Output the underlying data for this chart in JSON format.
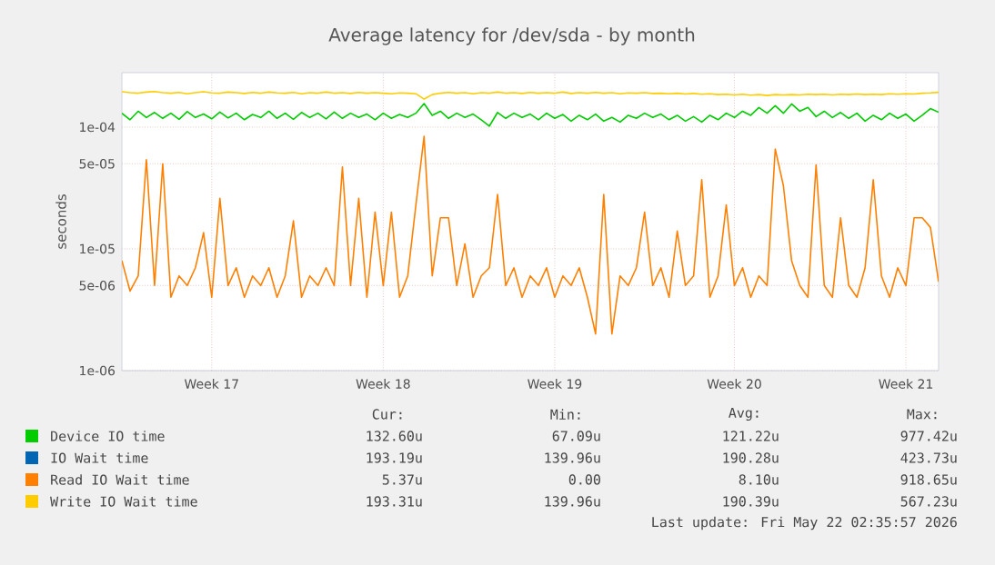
{
  "chart_data": {
    "type": "line",
    "title": "Average latency for /dev/sda - by month",
    "ylabel": "seconds",
    "log": "y",
    "grid": true,
    "legend": "bottom",
    "marker": "none",
    "line_style": "solid",
    "categories": [
      null,
      null,
      null,
      null,
      null,
      null,
      null,
      null,
      null,
      null,
      null,
      "Week 17",
      null,
      null,
      null,
      null,
      null,
      null,
      null,
      null,
      null,
      null,
      null,
      null,
      null,
      null,
      null,
      null,
      null,
      null,
      null,
      null,
      "Week 18",
      null,
      null,
      null,
      null,
      null,
      null,
      null,
      null,
      null,
      null,
      null,
      null,
      null,
      null,
      null,
      null,
      null,
      null,
      null,
      null,
      "Week 19",
      null,
      null,
      null,
      null,
      null,
      null,
      null,
      null,
      null,
      null,
      null,
      null,
      null,
      null,
      null,
      null,
      null,
      null,
      null,
      null,
      null,
      "Week 20",
      null,
      null,
      null,
      null,
      null,
      null,
      null,
      null,
      null,
      null,
      null,
      null,
      null,
      null,
      null,
      null,
      null,
      null,
      null,
      null,
      "Week 21",
      null,
      null,
      null,
      null
    ],
    "ylim": [
      1e-06,
      0.00028
    ],
    "yticks": [
      {
        "value": 1e-06,
        "label": "1e-06"
      },
      {
        "value": 5e-06,
        "label": "5e-06"
      },
      {
        "value": 1e-05,
        "label": "1e-05"
      },
      {
        "value": 5e-05,
        "label": "5e-05"
      },
      {
        "value": 0.0001,
        "label": "1e-04"
      }
    ],
    "series": [
      {
        "name": "Device IO time",
        "color": "#00cc00",
        "values": [
          0.00013,
          0.000115,
          0.000135,
          0.00012,
          0.000132,
          0.000118,
          0.00013,
          0.000116,
          0.000134,
          0.00012,
          0.000128,
          0.000117,
          0.000133,
          0.000119,
          0.00013,
          0.000115,
          0.000127,
          0.00012,
          0.000135,
          0.000118,
          0.00013,
          0.000116,
          0.000132,
          0.00012,
          0.00013,
          0.000117,
          0.000133,
          0.000118,
          0.00013,
          0.00012,
          0.000128,
          0.000115,
          0.00013,
          0.000118,
          0.000127,
          0.00012,
          0.00013,
          0.000156,
          0.000125,
          0.000135,
          0.000118,
          0.00013,
          0.00012,
          0.000128,
          0.000115,
          0.000102,
          0.000132,
          0.000118,
          0.00013,
          0.00012,
          0.000128,
          0.000115,
          0.00013,
          0.000118,
          0.000127,
          0.000112,
          0.000125,
          0.000115,
          0.000128,
          0.000112,
          0.00012,
          0.00011,
          0.000125,
          0.000118,
          0.00013,
          0.00012,
          0.000128,
          0.000115,
          0.000125,
          0.000112,
          0.000122,
          0.00011,
          0.000125,
          0.000115,
          0.00013,
          0.00012,
          0.000135,
          0.000125,
          0.000145,
          0.00013,
          0.00015,
          0.00013,
          0.000155,
          0.000135,
          0.000145,
          0.000122,
          0.000135,
          0.00012,
          0.000132,
          0.000118,
          0.00013,
          0.000112,
          0.000125,
          0.000115,
          0.00013,
          0.000118,
          0.000128,
          0.000112,
          0.000125,
          0.000142,
          0.0001326
        ]
      },
      {
        "name": "IO Wait time",
        "color": "#0066b3",
        "values": [
          null,
          null,
          null,
          null,
          null,
          null,
          null,
          null,
          null,
          null,
          null,
          null,
          null,
          null,
          null,
          null,
          null,
          null,
          null,
          null,
          null,
          null,
          null,
          null,
          null,
          null,
          null,
          null,
          null,
          null,
          null,
          null,
          null,
          null,
          null,
          null,
          null,
          null,
          null,
          null,
          null,
          null,
          null,
          null,
          null,
          null,
          null,
          null,
          null,
          null,
          null,
          null,
          null,
          null,
          null,
          null,
          null,
          null,
          null,
          null,
          null,
          null,
          null,
          null,
          null,
          null,
          null,
          null,
          null,
          null,
          null,
          null,
          null,
          null,
          null,
          null,
          null,
          null,
          null,
          null,
          null,
          null,
          null,
          null,
          null,
          null,
          null,
          null,
          null,
          null,
          null,
          null,
          null,
          null,
          null,
          null,
          null,
          null,
          null,
          null,
          null
        ]
      },
      {
        "name": "Read IO Wait time",
        "color": "#ff8000",
        "values": [
          8e-06,
          4.5e-06,
          6e-06,
          5.4e-05,
          5e-06,
          5e-05,
          4e-06,
          6e-06,
          5e-06,
          7e-06,
          1.36e-05,
          4e-06,
          2.6e-05,
          5e-06,
          7e-06,
          4e-06,
          6e-06,
          5e-06,
          7e-06,
          4e-06,
          6e-06,
          1.7e-05,
          4e-06,
          6e-06,
          5e-06,
          7e-06,
          5e-06,
          4.7e-05,
          5e-06,
          2.6e-05,
          4e-06,
          2e-05,
          5e-06,
          2e-05,
          4e-06,
          6e-06,
          2.3e-05,
          8.4e-05,
          6e-06,
          1.8e-05,
          1.8e-05,
          5e-06,
          1.1e-05,
          4e-06,
          6e-06,
          7e-06,
          2.8e-05,
          5e-06,
          7e-06,
          4e-06,
          6e-06,
          5e-06,
          7e-06,
          4e-06,
          6e-06,
          5e-06,
          7e-06,
          4e-06,
          2e-06,
          2.8e-05,
          2e-06,
          6e-06,
          5e-06,
          7e-06,
          2e-05,
          5e-06,
          7e-06,
          4e-06,
          1.4e-05,
          5e-06,
          6e-06,
          3.7e-05,
          4e-06,
          6e-06,
          2.3e-05,
          5e-06,
          7e-06,
          4e-06,
          6e-06,
          5e-06,
          6.6e-05,
          3.3e-05,
          8e-06,
          5e-06,
          4e-06,
          4.9e-05,
          5e-06,
          4e-06,
          1.8e-05,
          5e-06,
          4e-06,
          7e-06,
          3.7e-05,
          6e-06,
          4e-06,
          7e-06,
          5e-06,
          1.8e-05,
          1.8e-05,
          1.5e-05,
          5.37e-06
        ]
      },
      {
        "name": "Write IO Wait time",
        "color": "#ffcc00",
        "values": [
          0.000195,
          0.000192,
          0.00019,
          0.000194,
          0.000196,
          0.000192,
          0.00019,
          0.000193,
          0.000188,
          0.000192,
          0.000195,
          0.000191,
          0.00019,
          0.000194,
          0.000192,
          0.000189,
          0.000193,
          0.00019,
          0.000194,
          0.000191,
          0.00019,
          0.000193,
          0.000188,
          0.000192,
          0.00019,
          0.000194,
          0.00019,
          0.000192,
          0.000189,
          0.000193,
          0.00019,
          0.000192,
          0.00019,
          0.000188,
          0.000191,
          0.00019,
          0.000188,
          0.00017,
          0.000185,
          0.00019,
          0.000193,
          0.00019,
          0.000192,
          0.000188,
          0.000192,
          0.00019,
          0.000194,
          0.00019,
          0.000192,
          0.000189,
          0.000193,
          0.00019,
          0.000192,
          0.00019,
          0.000194,
          0.000189,
          0.000192,
          0.00019,
          0.000193,
          0.00019,
          0.000192,
          0.000188,
          0.000191,
          0.00019,
          0.000192,
          0.000189,
          0.00019,
          0.000188,
          0.00019,
          0.000187,
          0.000189,
          0.000186,
          0.000188,
          0.000185,
          0.000186,
          0.000184,
          0.000186,
          0.000183,
          0.000185,
          0.000182,
          0.000185,
          0.000184,
          0.000185,
          0.000184,
          0.000186,
          0.000185,
          0.000186,
          0.000184,
          0.000186,
          0.000185,
          0.000187,
          0.000185,
          0.000186,
          0.000185,
          0.000188,
          0.000186,
          0.000188,
          0.000187,
          0.00019,
          0.000191,
          0.0001933
        ]
      }
    ],
    "annotations": [
      "Cur:",
      "Min:",
      "Avg:",
      "Max:",
      "132.60u",
      "67.09u",
      "121.22u",
      "977.42u",
      "193.19u",
      "139.96u",
      "190.28u",
      "423.73u",
      "5.37u",
      "0.00",
      "8.10u",
      "918.65u",
      "193.31u",
      "139.96u",
      "190.39u",
      "567.23u",
      "Last update: Fri May 22 02:35:57 2026"
    ]
  }
}
